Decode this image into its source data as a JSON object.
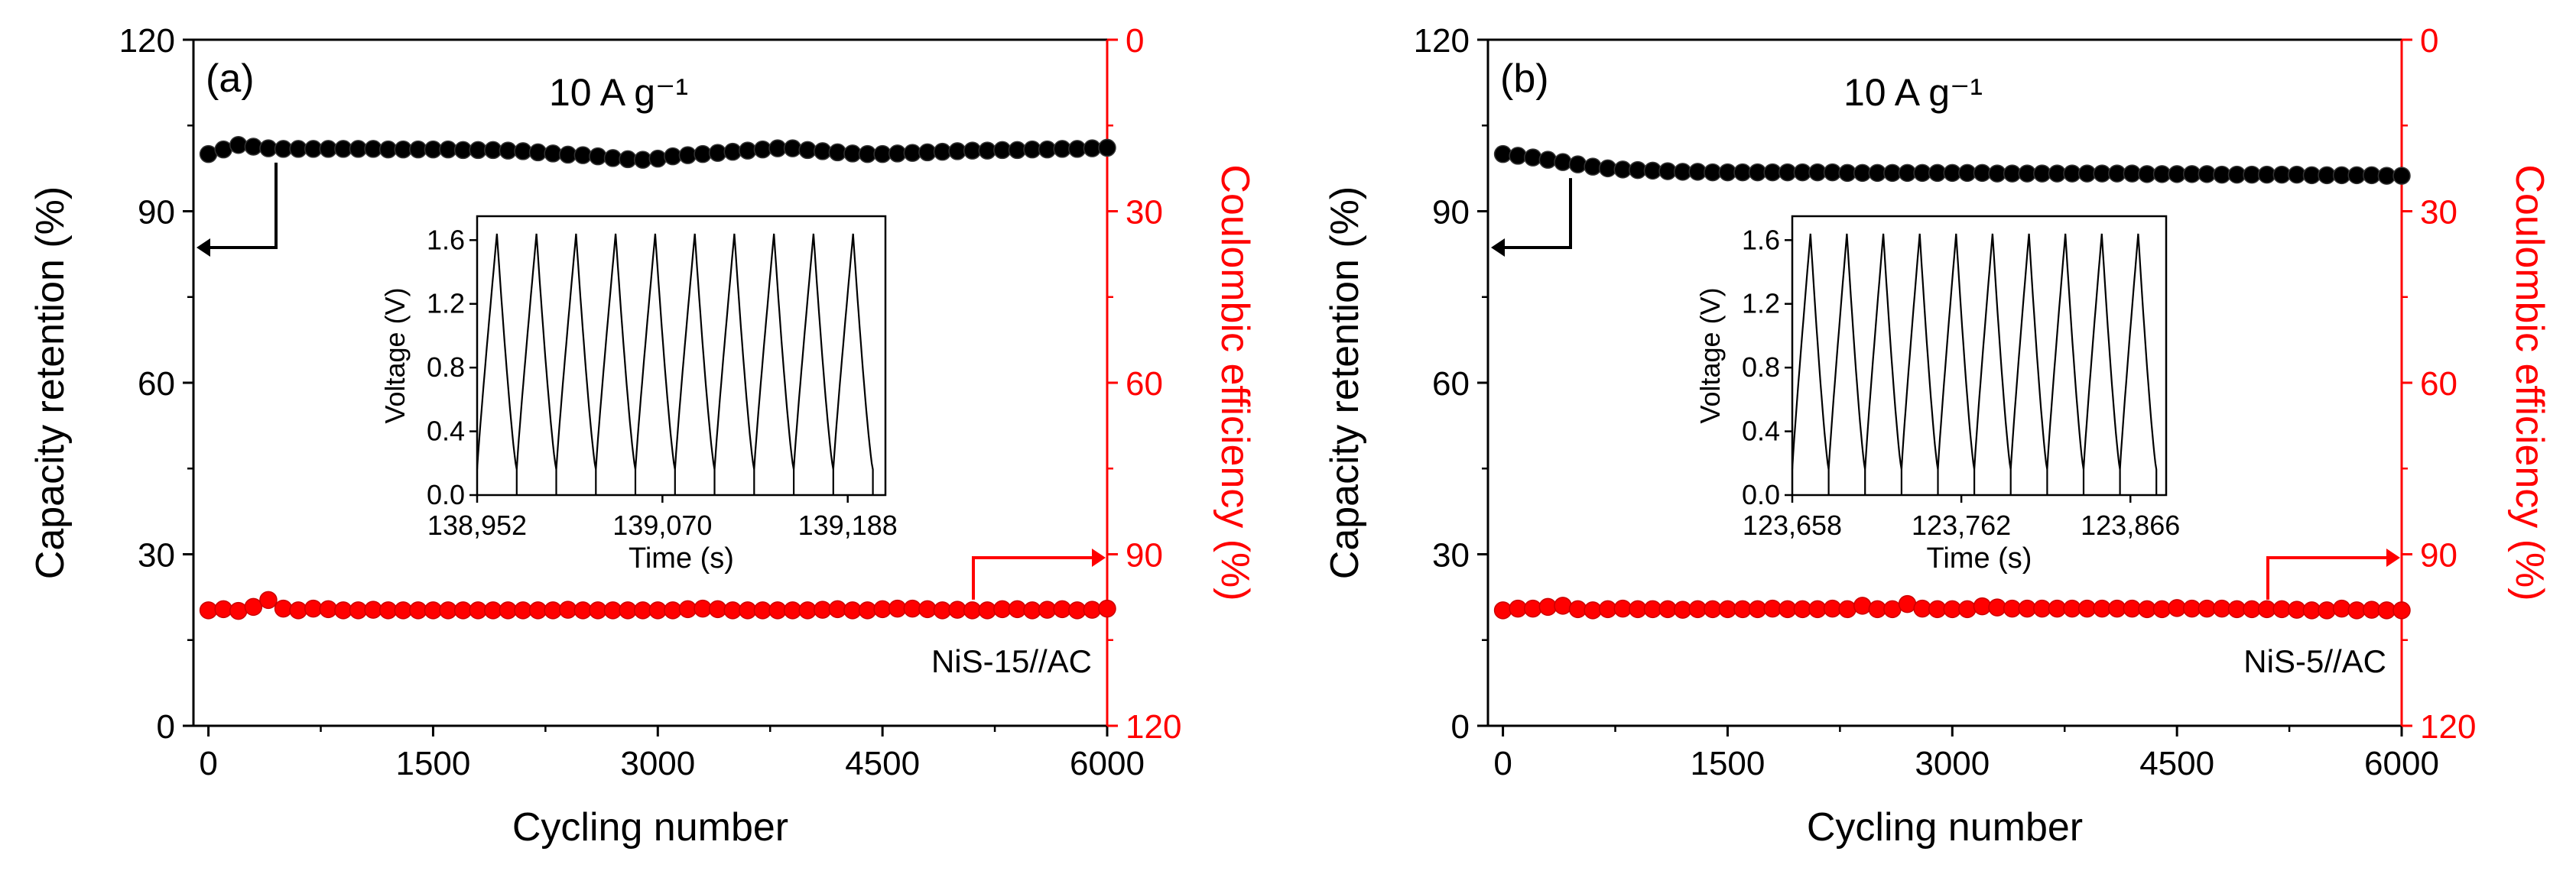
{
  "chart_data": [
    {
      "type": "scatter",
      "panel_label": "(a)",
      "annotation": "10 A g⁻¹",
      "xlabel": "Cycling number",
      "ylabel": "Capacity retention (%)",
      "y2label": "Coulombic efficiency (%)",
      "xlim": [
        -100,
        6000
      ],
      "ylim": [
        0,
        120
      ],
      "y2lim": [
        0,
        120
      ],
      "y2_inverted": true,
      "xticks": [
        "0",
        "1500",
        "3000",
        "4500",
        "6000"
      ],
      "yticks": [
        "0",
        "30",
        "60",
        "90",
        "120"
      ],
      "y2ticks": [
        "0",
        "30",
        "60",
        "90",
        "120"
      ],
      "legend_text": "NiS-15//AC",
      "colors": {
        "retention": "#000000",
        "efficiency": "#ff0000",
        "axis": "#000000",
        "axis2": "#ff0000"
      },
      "series": [
        {
          "name": "Capacity retention",
          "axis": "left",
          "x": [
            0,
            100,
            200,
            300,
            400,
            500,
            600,
            700,
            800,
            900,
            1000,
            1100,
            1200,
            1300,
            1400,
            1500,
            1600,
            1700,
            1800,
            1900,
            2000,
            2100,
            2200,
            2300,
            2400,
            2500,
            2600,
            2700,
            2800,
            2900,
            3000,
            3100,
            3200,
            3300,
            3400,
            3500,
            3600,
            3700,
            3800,
            3900,
            4000,
            4100,
            4200,
            4300,
            4400,
            4500,
            4600,
            4700,
            4800,
            4900,
            5000,
            5100,
            5200,
            5300,
            5400,
            5500,
            5600,
            5700,
            5800,
            5900,
            6000
          ],
          "y": [
            100.0,
            100.8,
            101.6,
            101.3,
            101.0,
            100.9,
            100.9,
            100.9,
            100.9,
            100.9,
            100.9,
            100.9,
            100.8,
            100.8,
            100.8,
            100.8,
            100.8,
            100.7,
            100.7,
            100.7,
            100.6,
            100.5,
            100.3,
            100.1,
            99.9,
            99.8,
            99.6,
            99.3,
            99.1,
            99.0,
            99.2,
            99.6,
            99.8,
            100.0,
            100.2,
            100.4,
            100.6,
            100.8,
            101.0,
            101.0,
            100.7,
            100.5,
            100.3,
            100.1,
            100.0,
            100.0,
            100.1,
            100.2,
            100.3,
            100.4,
            100.5,
            100.6,
            100.6,
            100.7,
            100.7,
            100.8,
            100.8,
            100.9,
            100.9,
            101.0,
            101.1
          ]
        },
        {
          "name": "Coulombic efficiency",
          "axis": "right",
          "x": [
            0,
            100,
            200,
            300,
            400,
            500,
            600,
            700,
            800,
            900,
            1000,
            1100,
            1200,
            1300,
            1400,
            1500,
            1600,
            1700,
            1800,
            1900,
            2000,
            2100,
            2200,
            2300,
            2400,
            2500,
            2600,
            2700,
            2800,
            2900,
            3000,
            3100,
            3200,
            3300,
            3400,
            3500,
            3600,
            3700,
            3800,
            3900,
            4000,
            4100,
            4200,
            4300,
            4400,
            4500,
            4600,
            4700,
            4800,
            4900,
            5000,
            5100,
            5200,
            5300,
            5400,
            5500,
            5600,
            5700,
            5800,
            5900,
            6000
          ],
          "y": [
            99.8,
            99.6,
            99.9,
            99.2,
            98.0,
            99.5,
            99.8,
            99.5,
            99.6,
            99.8,
            99.8,
            99.7,
            99.8,
            99.8,
            99.8,
            99.8,
            99.8,
            99.8,
            99.8,
            99.8,
            99.8,
            99.8,
            99.8,
            99.8,
            99.7,
            99.8,
            99.8,
            99.8,
            99.8,
            99.8,
            99.8,
            99.8,
            99.6,
            99.5,
            99.6,
            99.8,
            99.8,
            99.8,
            99.8,
            99.8,
            99.8,
            99.7,
            99.6,
            99.8,
            99.8,
            99.6,
            99.5,
            99.5,
            99.6,
            99.8,
            99.7,
            99.8,
            99.8,
            99.6,
            99.6,
            99.8,
            99.7,
            99.6,
            99.8,
            99.7,
            99.5
          ]
        }
      ],
      "inset": {
        "type": "line",
        "xlabel": "Time (s)",
        "ylabel": "Voltage (V)",
        "xticks": [
          "138,952",
          "139,070",
          "139,188"
        ],
        "yticks": [
          "0.0",
          "0.4",
          "0.8",
          "1.2",
          "1.6"
        ],
        "xlim": [
          138952,
          139212
        ],
        "ylim": [
          0,
          1.75
        ],
        "cycles": 10,
        "cycle_start": 138952,
        "cycle_period": 25.2,
        "charge_fraction": 0.5,
        "v_max": 1.64,
        "v_jump": 0.16
      }
    },
    {
      "type": "scatter",
      "panel_label": "(b)",
      "annotation": "10 A g⁻¹",
      "xlabel": "Cycling number",
      "ylabel": "Capacity retention (%)",
      "y2label": "Coulombic efficiency (%)",
      "xlim": [
        -100,
        6000
      ],
      "ylim": [
        0,
        120
      ],
      "y2lim": [
        0,
        120
      ],
      "y2_inverted": true,
      "xticks": [
        "0",
        "1500",
        "3000",
        "4500",
        "6000"
      ],
      "yticks": [
        "0",
        "30",
        "60",
        "90",
        "120"
      ],
      "y2ticks": [
        "0",
        "30",
        "60",
        "90",
        "120"
      ],
      "legend_text": "NiS-5//AC",
      "colors": {
        "retention": "#000000",
        "efficiency": "#ff0000",
        "axis": "#000000",
        "axis2": "#ff0000"
      },
      "series": [
        {
          "name": "Capacity retention",
          "axis": "left",
          "x": [
            0,
            100,
            200,
            300,
            400,
            500,
            600,
            700,
            800,
            900,
            1000,
            1100,
            1200,
            1300,
            1400,
            1500,
            1600,
            1700,
            1800,
            1900,
            2000,
            2100,
            2200,
            2300,
            2400,
            2500,
            2600,
            2700,
            2800,
            2900,
            3000,
            3100,
            3200,
            3300,
            3400,
            3500,
            3600,
            3700,
            3800,
            3900,
            4000,
            4100,
            4200,
            4300,
            4400,
            4500,
            4600,
            4700,
            4800,
            4900,
            5000,
            5100,
            5200,
            5300,
            5400,
            5500,
            5600,
            5700,
            5800,
            5900,
            6000
          ],
          "y": [
            100.0,
            99.7,
            99.4,
            99.0,
            98.6,
            98.2,
            97.8,
            97.5,
            97.3,
            97.2,
            97.1,
            97.0,
            96.9,
            96.9,
            96.8,
            96.8,
            96.8,
            96.8,
            96.8,
            96.8,
            96.8,
            96.8,
            96.8,
            96.7,
            96.7,
            96.7,
            96.7,
            96.7,
            96.7,
            96.7,
            96.7,
            96.7,
            96.7,
            96.6,
            96.6,
            96.6,
            96.6,
            96.6,
            96.6,
            96.6,
            96.6,
            96.6,
            96.6,
            96.5,
            96.5,
            96.5,
            96.5,
            96.5,
            96.4,
            96.4,
            96.4,
            96.4,
            96.4,
            96.4,
            96.3,
            96.3,
            96.3,
            96.3,
            96.3,
            96.2,
            96.2
          ]
        },
        {
          "name": "Coulombic efficiency",
          "axis": "right",
          "x": [
            0,
            100,
            200,
            300,
            400,
            500,
            600,
            700,
            800,
            900,
            1000,
            1100,
            1200,
            1300,
            1400,
            1500,
            1600,
            1700,
            1800,
            1900,
            2000,
            2100,
            2200,
            2300,
            2400,
            2500,
            2600,
            2700,
            2800,
            2900,
            3000,
            3100,
            3200,
            3300,
            3400,
            3500,
            3600,
            3700,
            3800,
            3900,
            4000,
            4100,
            4200,
            4300,
            4400,
            4500,
            4600,
            4700,
            4800,
            4900,
            5000,
            5100,
            5200,
            5300,
            5400,
            5500,
            5600,
            5700,
            5800,
            5900,
            6000
          ],
          "y": [
            99.8,
            99.5,
            99.5,
            99.2,
            99.0,
            99.6,
            99.8,
            99.6,
            99.5,
            99.6,
            99.6,
            99.6,
            99.7,
            99.6,
            99.6,
            99.6,
            99.6,
            99.6,
            99.5,
            99.6,
            99.6,
            99.6,
            99.5,
            99.6,
            99.0,
            99.6,
            99.6,
            98.7,
            99.5,
            99.6,
            99.6,
            99.6,
            99.1,
            99.3,
            99.5,
            99.5,
            99.5,
            99.5,
            99.5,
            99.5,
            99.5,
            99.5,
            99.5,
            99.6,
            99.6,
            99.4,
            99.5,
            99.5,
            99.5,
            99.6,
            99.6,
            99.6,
            99.6,
            99.7,
            99.8,
            99.8,
            99.5,
            99.8,
            99.7,
            99.8,
            99.8
          ]
        }
      ],
      "inset": {
        "type": "line",
        "xlabel": "Time (s)",
        "ylabel": "Voltage (V)",
        "xticks": [
          "123,658",
          "123,762",
          "123,866"
        ],
        "yticks": [
          "0.0",
          "0.4",
          "0.8",
          "1.2",
          "1.6"
        ],
        "xlim": [
          123658,
          123888
        ],
        "ylim": [
          0,
          1.75
        ],
        "cycles": 10,
        "cycle_start": 123658,
        "cycle_period": 22.4,
        "charge_fraction": 0.5,
        "v_max": 1.64,
        "v_jump": 0.16
      }
    }
  ]
}
